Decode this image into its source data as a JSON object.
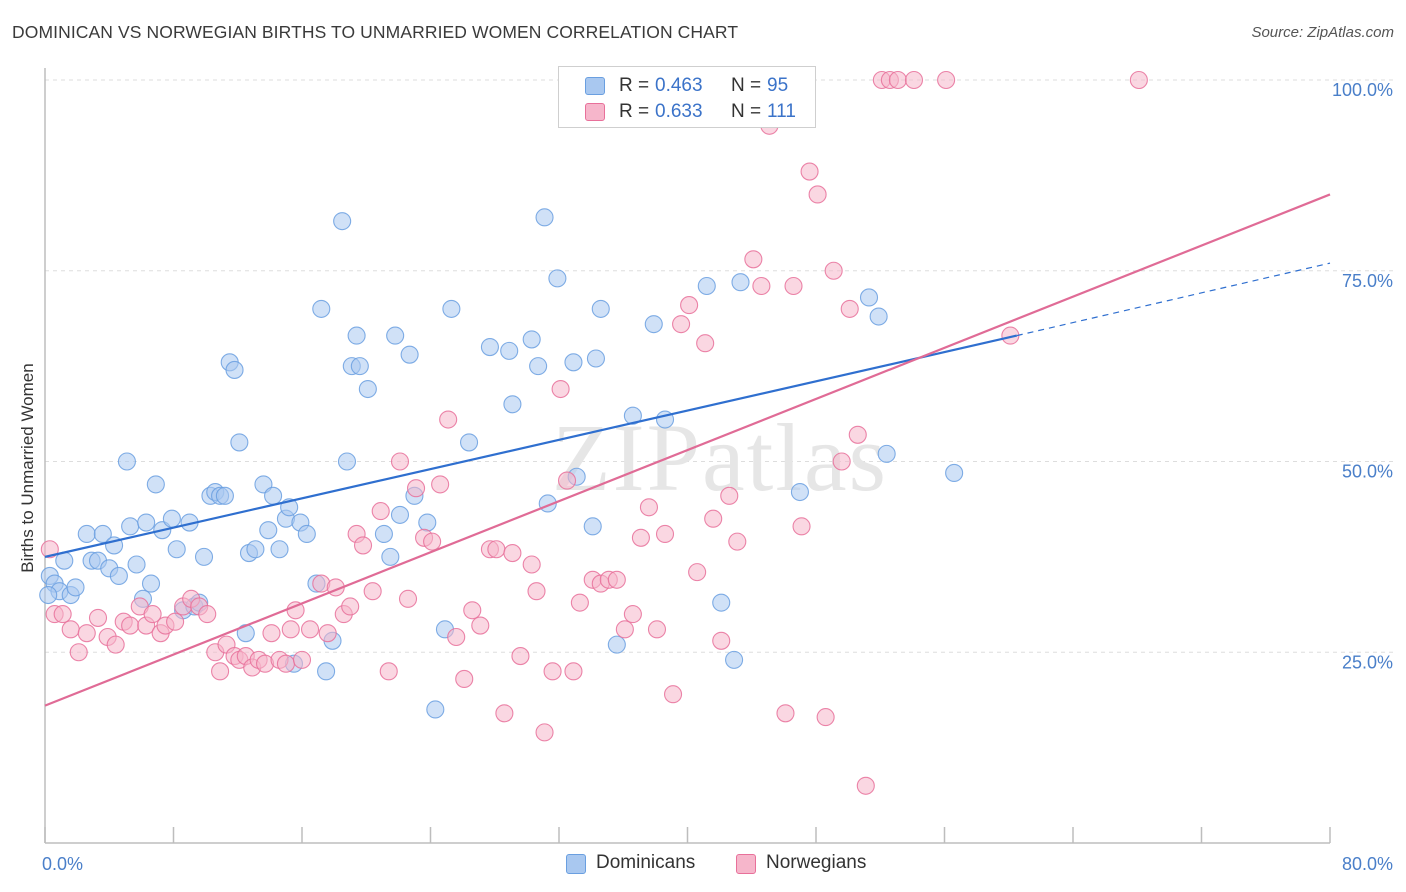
{
  "title": "DOMINICAN VS NORWEGIAN BIRTHS TO UNMARRIED WOMEN CORRELATION CHART",
  "source": "Source: ZipAtlas.com",
  "watermark": "ZIPatlas",
  "legend_top": {
    "rows": [
      {
        "r_label": "R =",
        "r_value": "0.463",
        "n_label": "N =",
        "n_value": "95",
        "color": "#a9c8f0"
      },
      {
        "r_label": "R =",
        "r_value": "0.633",
        "n_label": "N =",
        "n_value": "111",
        "color": "#f6b6cb"
      }
    ]
  },
  "legend_bottom": [
    {
      "label": "Dominicans",
      "color": "#a9c8f0"
    },
    {
      "label": "Norwegians",
      "color": "#f6b6cb"
    }
  ],
  "chart_data": {
    "type": "scatter",
    "title": "DOMINICAN VS NORWEGIAN BIRTHS TO UNMARRIED WOMEN CORRELATION CHART",
    "xlabel": "",
    "ylabel": "Births to Unmarried Women",
    "xlim": [
      0,
      80
    ],
    "ylim": [
      0,
      105
    ],
    "x_tick_labels": [
      "0.0%",
      "80.0%"
    ],
    "y_ticks": [
      25,
      50,
      75,
      100
    ],
    "y_tick_labels": [
      "25.0%",
      "50.0%",
      "75.0%",
      "100.0%"
    ],
    "grid": true,
    "legend_position": "top-center",
    "series": [
      {
        "name": "Dominicans",
        "color": "#6a9fe0",
        "fill": "#a9c8f0",
        "trend": {
          "x0": 0,
          "y0": 37.5,
          "x1": 60.5,
          "y1": 66.5,
          "dash_x1": 80,
          "dash_y1": 76
        },
        "points": [
          [
            0.3,
            35
          ],
          [
            0.6,
            34
          ],
          [
            0.9,
            33
          ],
          [
            1.2,
            37
          ],
          [
            1.6,
            32.5
          ],
          [
            1.9,
            33.5
          ],
          [
            2.6,
            40.5
          ],
          [
            2.9,
            37
          ],
          [
            3.3,
            37
          ],
          [
            3.6,
            40.5
          ],
          [
            4,
            36
          ],
          [
            4.3,
            39
          ],
          [
            4.6,
            35
          ],
          [
            5.1,
            50
          ],
          [
            5.3,
            41.5
          ],
          [
            5.7,
            36.5
          ],
          [
            6.1,
            32
          ],
          [
            6.3,
            42
          ],
          [
            6.6,
            34
          ],
          [
            6.9,
            47
          ],
          [
            7.3,
            41
          ],
          [
            7.9,
            42.5
          ],
          [
            8.2,
            38.5
          ],
          [
            8.6,
            30.5
          ],
          [
            9,
            42
          ],
          [
            9.3,
            31
          ],
          [
            9.6,
            31.5
          ],
          [
            9.9,
            37.5
          ],
          [
            10.3,
            45.5
          ],
          [
            10.6,
            46
          ],
          [
            10.9,
            45.5
          ],
          [
            11.2,
            45.5
          ],
          [
            11.5,
            63
          ],
          [
            11.8,
            62
          ],
          [
            12.1,
            52.5
          ],
          [
            12.5,
            27.5
          ],
          [
            12.7,
            38
          ],
          [
            13.1,
            38.5
          ],
          [
            13.6,
            47
          ],
          [
            13.9,
            41
          ],
          [
            14.2,
            45.5
          ],
          [
            14.6,
            38.5
          ],
          [
            15,
            42.5
          ],
          [
            15.2,
            44
          ],
          [
            15.5,
            23.5
          ],
          [
            15.9,
            42
          ],
          [
            16.3,
            40.5
          ],
          [
            16.9,
            34
          ],
          [
            17.2,
            70
          ],
          [
            17.5,
            22.5
          ],
          [
            17.9,
            26.5
          ],
          [
            18.5,
            81.5
          ],
          [
            18.8,
            50
          ],
          [
            19.1,
            62.5
          ],
          [
            19.4,
            66.5
          ],
          [
            19.6,
            62.5
          ],
          [
            20.1,
            59.5
          ],
          [
            21.1,
            40.5
          ],
          [
            21.5,
            37.5
          ],
          [
            21.8,
            66.5
          ],
          [
            22.1,
            43
          ],
          [
            22.7,
            64
          ],
          [
            23,
            45.5
          ],
          [
            23.8,
            42
          ],
          [
            24.3,
            17.5
          ],
          [
            24.9,
            28
          ],
          [
            25.3,
            70
          ],
          [
            26.4,
            52.5
          ],
          [
            27.7,
            65
          ],
          [
            28.9,
            64.5
          ],
          [
            29.1,
            57.5
          ],
          [
            30.3,
            66
          ],
          [
            30.7,
            62.5
          ],
          [
            31.1,
            82
          ],
          [
            31.3,
            44.5
          ],
          [
            31.9,
            74
          ],
          [
            32.9,
            63
          ],
          [
            33.1,
            48
          ],
          [
            34.1,
            41.5
          ],
          [
            34.3,
            63.5
          ],
          [
            34.6,
            70
          ],
          [
            35.6,
            26
          ],
          [
            36.6,
            56
          ],
          [
            37.9,
            68
          ],
          [
            38.6,
            55.5
          ],
          [
            41.2,
            73
          ],
          [
            42.1,
            31.5
          ],
          [
            42.9,
            24
          ],
          [
            43.3,
            73.5
          ],
          [
            47,
            46
          ],
          [
            51.3,
            71.5
          ],
          [
            51.9,
            69
          ],
          [
            52.4,
            51
          ],
          [
            56.6,
            48.5
          ],
          [
            0.2,
            32.5
          ]
        ]
      },
      {
        "name": "Norwegians",
        "color": "#e8709a",
        "fill": "#f6b6cb",
        "trend": {
          "x0": 0,
          "y0": 18,
          "x1": 80,
          "y1": 85
        },
        "points": [
          [
            0.3,
            38.5
          ],
          [
            0.6,
            30
          ],
          [
            1.1,
            30
          ],
          [
            1.6,
            28
          ],
          [
            2.1,
            25
          ],
          [
            2.6,
            27.5
          ],
          [
            3.3,
            29.5
          ],
          [
            3.9,
            27
          ],
          [
            4.4,
            26
          ],
          [
            4.9,
            29
          ],
          [
            5.3,
            28.5
          ],
          [
            5.9,
            31
          ],
          [
            6.3,
            28.5
          ],
          [
            6.7,
            30
          ],
          [
            7.2,
            27.5
          ],
          [
            7.5,
            28.5
          ],
          [
            8.1,
            29
          ],
          [
            8.6,
            31
          ],
          [
            9.1,
            32
          ],
          [
            9.6,
            31
          ],
          [
            10.1,
            30
          ],
          [
            10.6,
            25
          ],
          [
            10.9,
            22.5
          ],
          [
            11.3,
            26
          ],
          [
            11.8,
            24.5
          ],
          [
            12.1,
            24
          ],
          [
            12.5,
            24.5
          ],
          [
            12.9,
            23
          ],
          [
            13.3,
            24
          ],
          [
            13.7,
            23.5
          ],
          [
            14.1,
            27.5
          ],
          [
            14.6,
            24
          ],
          [
            15,
            23.5
          ],
          [
            15.3,
            28
          ],
          [
            15.6,
            30.5
          ],
          [
            16,
            24
          ],
          [
            16.5,
            28
          ],
          [
            17.2,
            34
          ],
          [
            17.6,
            27.5
          ],
          [
            18.1,
            33.5
          ],
          [
            18.6,
            30
          ],
          [
            19,
            31
          ],
          [
            19.4,
            40.5
          ],
          [
            19.8,
            39
          ],
          [
            20.4,
            33
          ],
          [
            20.9,
            43.5
          ],
          [
            21.4,
            22.5
          ],
          [
            22.1,
            50
          ],
          [
            22.6,
            32
          ],
          [
            23.1,
            46.5
          ],
          [
            23.6,
            40
          ],
          [
            24.1,
            39.5
          ],
          [
            24.6,
            47
          ],
          [
            25.1,
            55.5
          ],
          [
            25.6,
            27
          ],
          [
            26.1,
            21.5
          ],
          [
            26.6,
            30.5
          ],
          [
            27.1,
            28.5
          ],
          [
            27.7,
            38.5
          ],
          [
            28.1,
            38.5
          ],
          [
            28.6,
            17
          ],
          [
            29.1,
            38
          ],
          [
            29.6,
            24.5
          ],
          [
            30.3,
            36.5
          ],
          [
            30.6,
            33
          ],
          [
            31.1,
            14.5
          ],
          [
            31.6,
            22.5
          ],
          [
            32.1,
            59.5
          ],
          [
            32.5,
            47.5
          ],
          [
            32.9,
            22.5
          ],
          [
            33.3,
            31.5
          ],
          [
            34.1,
            34.5
          ],
          [
            34.6,
            34
          ],
          [
            35.1,
            34.5
          ],
          [
            35.6,
            34.5
          ],
          [
            36.1,
            28
          ],
          [
            36.6,
            30
          ],
          [
            37.1,
            40
          ],
          [
            37.6,
            44
          ],
          [
            38.1,
            28
          ],
          [
            38.6,
            40.5
          ],
          [
            39.1,
            19.5
          ],
          [
            39.6,
            68
          ],
          [
            40.1,
            70.5
          ],
          [
            40.6,
            35.5
          ],
          [
            41.1,
            65.5
          ],
          [
            41.6,
            42.5
          ],
          [
            42.1,
            26.5
          ],
          [
            42.6,
            45.5
          ],
          [
            43.1,
            39.5
          ],
          [
            44.1,
            76.5
          ],
          [
            44.6,
            73
          ],
          [
            45.1,
            94
          ],
          [
            46.1,
            17
          ],
          [
            46.6,
            73
          ],
          [
            47.1,
            41.5
          ],
          [
            47.6,
            88
          ],
          [
            48.1,
            85
          ],
          [
            48.6,
            16.5
          ],
          [
            49.1,
            75
          ],
          [
            49.6,
            50
          ],
          [
            50.1,
            70
          ],
          [
            50.6,
            53.5
          ],
          [
            51.1,
            7.5
          ],
          [
            52.1,
            100
          ],
          [
            52.6,
            100
          ],
          [
            53.1,
            100
          ],
          [
            54.1,
            100
          ],
          [
            56.1,
            100
          ],
          [
            68.1,
            100
          ],
          [
            60.1,
            66.5
          ]
        ]
      }
    ]
  }
}
